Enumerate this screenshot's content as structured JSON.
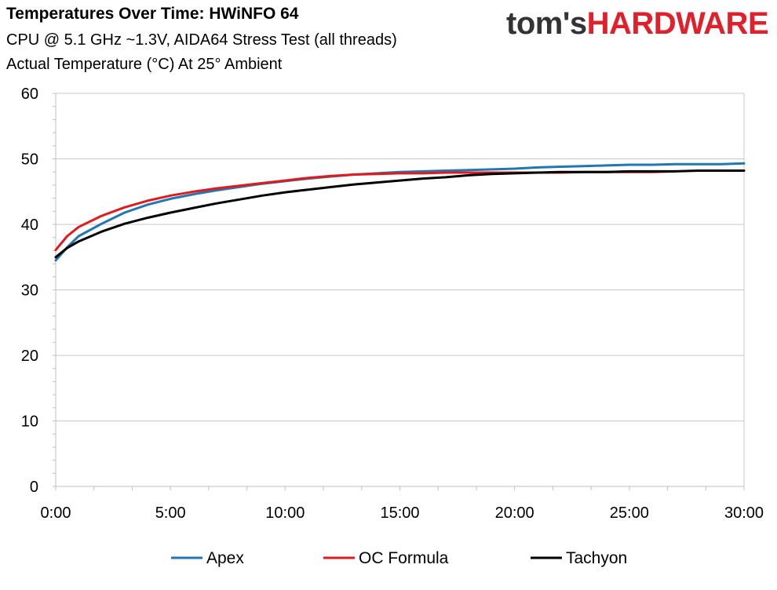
{
  "header": {
    "title": "Temperatures Over Time: HWiNFO 64",
    "subtitle1": "CPU @ 5.1 GHz ~1.3V, AIDA64 Stress Test (all threads)",
    "subtitle2": "Actual Temperature (°C) At 25° Ambient"
  },
  "logo": {
    "part1": "tom's",
    "part2": "HARDWARE",
    "color1": "#333333",
    "color2": "#e0202b"
  },
  "chart_data": {
    "type": "line",
    "title": "Temperatures Over Time: HWiNFO 64",
    "xlabel": "",
    "ylabel": "",
    "xlim": [
      0,
      30
    ],
    "ylim": [
      0,
      60
    ],
    "x_ticks": [
      "0:00",
      "5:00",
      "10:00",
      "15:00",
      "20:00",
      "25:00",
      "30:00"
    ],
    "y_ticks": [
      "0",
      "10",
      "20",
      "30",
      "40",
      "50",
      "60"
    ],
    "grid": true,
    "legend_position": "bottom",
    "x": [
      0,
      0.5,
      1,
      2,
      3,
      4,
      5,
      6,
      7,
      8,
      9,
      10,
      11,
      12,
      13,
      14,
      15,
      16,
      17,
      18,
      19,
      20,
      21,
      22,
      23,
      24,
      25,
      26,
      27,
      28,
      29,
      30
    ],
    "series": [
      {
        "name": "Apex",
        "color": "#1f77b4",
        "values": [
          34.5,
          36.5,
          38.2,
          40.1,
          41.8,
          43.0,
          43.9,
          44.6,
          45.2,
          45.7,
          46.2,
          46.6,
          47.0,
          47.3,
          47.6,
          47.8,
          48.0,
          48.1,
          48.2,
          48.3,
          48.4,
          48.5,
          48.7,
          48.8,
          48.9,
          49.0,
          49.1,
          49.1,
          49.2,
          49.2,
          49.2,
          49.3
        ]
      },
      {
        "name": "OC Formula",
        "color": "#e31a1c",
        "values": [
          36.1,
          38.2,
          39.6,
          41.3,
          42.6,
          43.6,
          44.4,
          45.0,
          45.5,
          45.9,
          46.3,
          46.7,
          47.1,
          47.4,
          47.6,
          47.7,
          47.8,
          47.8,
          47.9,
          47.9,
          47.9,
          47.9,
          47.9,
          47.9,
          48.0,
          48.0,
          48.0,
          48.0,
          48.1,
          null,
          null,
          null
        ]
      },
      {
        "name": "Tachyon",
        "color": "#000000",
        "values": [
          35.0,
          36.4,
          37.4,
          38.9,
          40.1,
          41.0,
          41.8,
          42.5,
          43.2,
          43.8,
          44.4,
          44.9,
          45.3,
          45.7,
          46.1,
          46.4,
          46.7,
          47.0,
          47.2,
          47.5,
          47.7,
          47.8,
          47.9,
          48.0,
          48.0,
          48.0,
          48.1,
          48.1,
          48.1,
          48.2,
          48.2,
          48.2
        ]
      }
    ]
  }
}
